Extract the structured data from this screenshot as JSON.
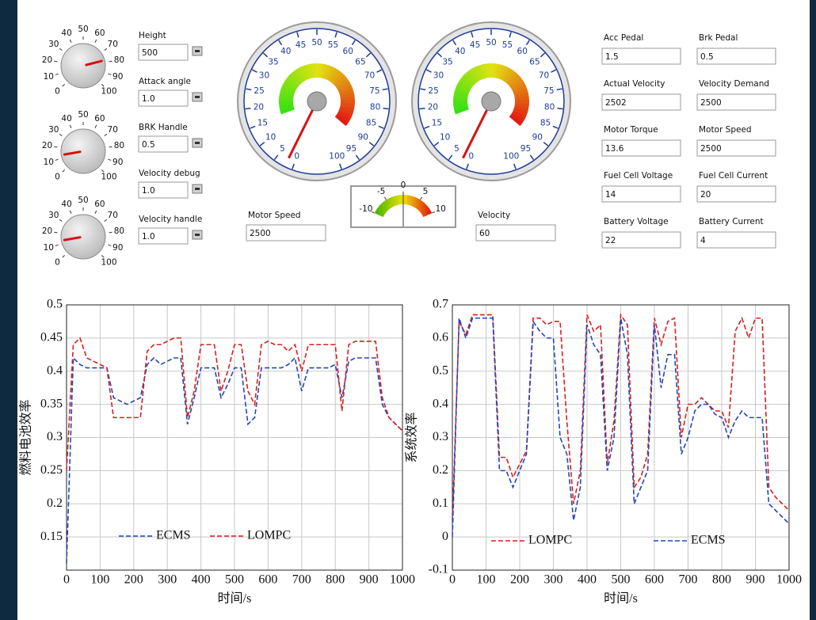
{
  "knobs": [
    {
      "ticks": [
        0,
        10,
        20,
        30,
        40,
        50,
        60,
        70,
        80,
        90,
        100
      ],
      "value": 78
    },
    {
      "ticks": [
        0,
        10,
        20,
        30,
        40,
        50,
        60,
        70,
        80,
        90,
        100
      ],
      "value": 13
    },
    {
      "ticks": [
        0,
        10,
        20,
        30,
        40,
        50,
        60,
        70,
        80,
        90,
        100
      ],
      "value": 13
    }
  ],
  "knob_fields": [
    {
      "label": "Height",
      "value": "500"
    },
    {
      "label": "Attack angle",
      "value": "1.0"
    },
    {
      "label": "BRK Handle",
      "value": "0.5"
    },
    {
      "label": "Velocity debug",
      "value": "1.0"
    },
    {
      "label": "Velocity handle",
      "value": "1.0"
    }
  ],
  "gauges": [
    {
      "ticks": [
        0,
        5,
        10,
        15,
        20,
        25,
        30,
        35,
        40,
        45,
        50,
        55,
        60,
        65,
        70,
        75,
        80,
        85,
        90,
        95,
        100
      ],
      "value": 2,
      "field": {
        "label": "Motor Speed",
        "value": "2500"
      }
    },
    {
      "ticks": [
        0,
        5,
        10,
        15,
        20,
        25,
        30,
        35,
        40,
        45,
        50,
        55,
        60,
        65,
        70,
        75,
        80,
        85,
        90,
        95,
        100
      ],
      "value": 2,
      "field": {
        "label": "Velocity",
        "value": "60"
      }
    }
  ],
  "meter": {
    "ticks": [
      -10,
      -5,
      0,
      5,
      10
    ],
    "value": 0
  },
  "fields": [
    {
      "label": "Acc Pedal",
      "value": "1.5"
    },
    {
      "label": "Brk Pedal",
      "value": "0.5"
    },
    {
      "label": "Actual Velocity",
      "value": "2502"
    },
    {
      "label": "Velocity Demand",
      "value": "2500"
    },
    {
      "label": "Motor Torque",
      "value": "13.6"
    },
    {
      "label": "Motor Speed",
      "value": "2500"
    },
    {
      "label": "Fuel Cell Voltage",
      "value": "14"
    },
    {
      "label": "Fuel Cell Current",
      "value": "20"
    },
    {
      "label": "Battery Voltage",
      "value": "22"
    },
    {
      "label": "Battery Current",
      "value": "4"
    }
  ],
  "chart_data": [
    {
      "type": "line",
      "xlabel": "时间/s",
      "ylabel": "燃料电池效率",
      "xlim": [
        0,
        1000
      ],
      "xticks": [
        0,
        100,
        200,
        300,
        400,
        500,
        600,
        700,
        800,
        900,
        1000
      ],
      "ylim": [
        0.1,
        0.5
      ],
      "yticks": [
        0.15,
        0.2,
        0.25,
        0.3,
        0.35,
        0.4,
        0.45,
        0.5
      ],
      "grid": true,
      "legend": "bottom",
      "x": [
        0,
        20,
        40,
        60,
        80,
        100,
        120,
        140,
        160,
        180,
        200,
        220,
        240,
        260,
        280,
        300,
        320,
        340,
        360,
        380,
        400,
        420,
        440,
        460,
        480,
        500,
        520,
        540,
        560,
        580,
        600,
        620,
        640,
        660,
        680,
        700,
        720,
        740,
        760,
        780,
        800,
        820,
        840,
        860,
        880,
        900,
        920,
        940,
        960,
        980,
        1000
      ],
      "series": [
        {
          "name": "ECMS",
          "color": "#2346b8",
          "values": [
            0.11,
            0.42,
            0.41,
            0.405,
            0.405,
            0.405,
            0.405,
            0.36,
            0.355,
            0.35,
            0.355,
            0.36,
            0.41,
            0.42,
            0.41,
            0.415,
            0.42,
            0.42,
            0.32,
            0.36,
            0.405,
            0.405,
            0.405,
            0.36,
            0.38,
            0.405,
            0.405,
            0.32,
            0.33,
            0.405,
            0.405,
            0.405,
            0.405,
            0.41,
            0.42,
            0.37,
            0.405,
            0.405,
            0.405,
            0.405,
            0.41,
            0.36,
            0.415,
            0.42,
            0.42,
            0.42,
            0.42,
            0.35,
            0.33,
            0.32,
            0.31
          ]
        },
        {
          "name": "LOMPC",
          "color": "#d62020",
          "values": [
            0.25,
            0.44,
            0.45,
            0.42,
            0.415,
            0.41,
            0.405,
            0.33,
            0.33,
            0.33,
            0.33,
            0.33,
            0.43,
            0.44,
            0.44,
            0.445,
            0.45,
            0.45,
            0.33,
            0.37,
            0.44,
            0.44,
            0.44,
            0.37,
            0.4,
            0.44,
            0.44,
            0.37,
            0.35,
            0.44,
            0.445,
            0.44,
            0.44,
            0.43,
            0.44,
            0.4,
            0.44,
            0.44,
            0.44,
            0.44,
            0.44,
            0.34,
            0.44,
            0.445,
            0.445,
            0.445,
            0.445,
            0.36,
            0.33,
            0.32,
            0.31
          ]
        }
      ]
    },
    {
      "type": "line",
      "xlabel": "时间/s",
      "ylabel": "系统效率",
      "xlim": [
        0,
        1000
      ],
      "xticks": [
        0,
        100,
        200,
        300,
        400,
        500,
        600,
        700,
        800,
        900,
        1000
      ],
      "ylim": [
        -0.1,
        0.7
      ],
      "yticks": [
        -0.1,
        0,
        0.1,
        0.2,
        0.3,
        0.4,
        0.5,
        0.6,
        0.7
      ],
      "grid": true,
      "legend": "bottom",
      "x": [
        0,
        20,
        40,
        60,
        80,
        100,
        120,
        140,
        160,
        180,
        200,
        220,
        240,
        260,
        280,
        300,
        320,
        340,
        360,
        380,
        400,
        420,
        440,
        460,
        480,
        500,
        520,
        540,
        560,
        580,
        600,
        620,
        640,
        660,
        680,
        700,
        720,
        740,
        760,
        780,
        800,
        820,
        840,
        860,
        880,
        900,
        920,
        940,
        960,
        980,
        1000
      ],
      "series": [
        {
          "name": "LOMPC",
          "color": "#d62020",
          "values": [
            0.05,
            0.65,
            0.61,
            0.67,
            0.67,
            0.67,
            0.67,
            0.24,
            0.24,
            0.18,
            0.22,
            0.26,
            0.66,
            0.66,
            0.64,
            0.65,
            0.65,
            0.35,
            0.1,
            0.2,
            0.67,
            0.62,
            0.64,
            0.22,
            0.35,
            0.67,
            0.64,
            0.15,
            0.18,
            0.25,
            0.66,
            0.58,
            0.65,
            0.66,
            0.3,
            0.4,
            0.4,
            0.42,
            0.4,
            0.38,
            0.38,
            0.33,
            0.62,
            0.66,
            0.6,
            0.66,
            0.66,
            0.15,
            0.12,
            0.1,
            0.08
          ]
        },
        {
          "name": "ECMS",
          "color": "#2346b8",
          "values": [
            0,
            0.66,
            0.6,
            0.66,
            0.66,
            0.66,
            0.66,
            0.2,
            0.2,
            0.15,
            0.2,
            0.25,
            0.65,
            0.62,
            0.6,
            0.6,
            0.3,
            0.25,
            0.05,
            0.15,
            0.64,
            0.58,
            0.55,
            0.2,
            0.3,
            0.66,
            0.55,
            0.1,
            0.15,
            0.2,
            0.64,
            0.45,
            0.55,
            0.55,
            0.25,
            0.3,
            0.38,
            0.4,
            0.4,
            0.37,
            0.36,
            0.3,
            0.35,
            0.38,
            0.36,
            0.36,
            0.36,
            0.1,
            0.08,
            0.06,
            0.04
          ]
        }
      ]
    }
  ]
}
